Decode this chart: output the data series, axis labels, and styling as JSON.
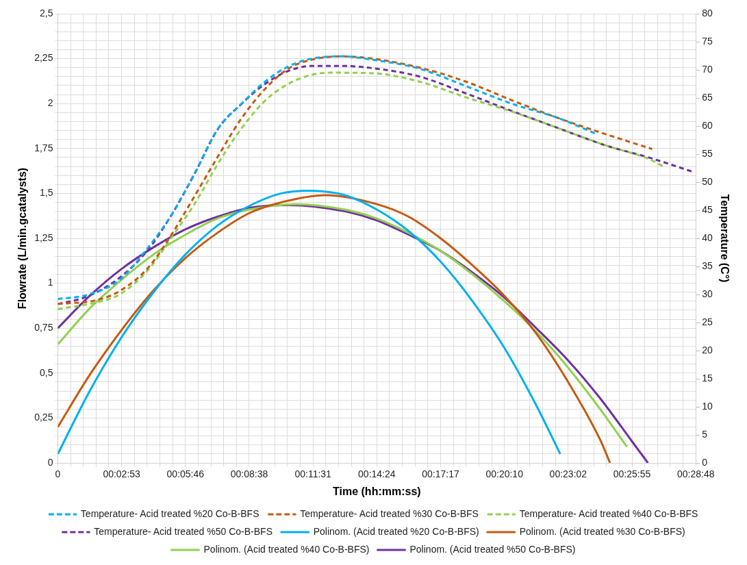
{
  "chart_data": {
    "type": "line",
    "xlabel": "Time (hh:mm:ss)",
    "ylabel": "Flowrate (L/min.gcatalysts)",
    "y2label": "Temperature (C°)",
    "xlim": [
      0,
      0.48
    ],
    "ylim": [
      0,
      2.5
    ],
    "y2lim": [
      0,
      80
    ],
    "xticks": [
      0,
      {
        "value": 0.0096,
        "label": null
      },
      {
        "value": 0.0192,
        "label": null
      },
      {
        "value": 0.0288,
        "label": null
      },
      {
        "value": 0.0384,
        "label": null
      },
      {
        "value": 0.048,
        "label": "00:02:53"
      },
      {
        "value": 0.0576,
        "label": null
      },
      {
        "value": 0.0672,
        "label": null
      },
      {
        "value": 0.0768,
        "label": null
      },
      {
        "value": 0.0864,
        "label": null
      },
      {
        "value": 0.096,
        "label": "00:05:46"
      },
      {
        "value": 0.1056,
        "label": null
      },
      {
        "value": 0.1152,
        "label": null
      },
      {
        "value": 0.1248,
        "label": null
      },
      {
        "value": 0.1344,
        "label": null
      },
      {
        "value": 0.144,
        "label": "00:08:38"
      },
      {
        "value": 0.1536,
        "label": null
      },
      {
        "value": 0.1632,
        "label": null
      },
      {
        "value": 0.1728,
        "label": null
      },
      {
        "value": 0.1824,
        "label": null
      },
      {
        "value": 0.192,
        "label": "00:11:31"
      },
      {
        "value": 0.2016,
        "label": null
      },
      {
        "value": 0.2112,
        "label": null
      },
      {
        "value": 0.2208,
        "label": null
      },
      {
        "value": 0.2304,
        "label": null
      },
      {
        "value": 0.24,
        "label": "00:14:24"
      },
      {
        "value": 0.2496,
        "label": null
      },
      {
        "value": 0.2592,
        "label": null
      },
      {
        "value": 0.2688,
        "label": null
      },
      {
        "value": 0.2784,
        "label": null
      },
      {
        "value": 0.288,
        "label": "00:17:17"
      },
      {
        "value": 0.2976,
        "label": null
      },
      {
        "value": 0.3072,
        "label": null
      },
      {
        "value": 0.3168,
        "label": null
      },
      {
        "value": 0.3264,
        "label": null
      },
      {
        "value": 0.336,
        "label": "00:20:10"
      },
      {
        "value": 0.3456,
        "label": null
      },
      {
        "value": 0.3552,
        "label": null
      },
      {
        "value": 0.3648,
        "label": null
      },
      {
        "value": 0.3744,
        "label": null
      },
      {
        "value": 0.384,
        "label": "00:23:02"
      },
      {
        "value": 0.3936,
        "label": null
      },
      {
        "value": 0.4032,
        "label": null
      },
      {
        "value": 0.4128,
        "label": null
      },
      {
        "value": 0.4224,
        "label": null
      },
      {
        "value": 0.432,
        "label": "00:25:55"
      },
      {
        "value": 0.4416,
        "label": null
      },
      {
        "value": 0.4512,
        "label": null
      },
      {
        "value": 0.4608,
        "label": null
      },
      {
        "value": 0.4704,
        "label": null
      },
      {
        "value": 0.48,
        "label": "00:28:48"
      }
    ],
    "yticks": [
      0,
      {
        "value": 0.05,
        "label": null
      },
      {
        "value": 0.1,
        "label": null
      },
      {
        "value": 0.15,
        "label": null
      },
      {
        "value": 0.2,
        "label": null
      },
      {
        "value": 0.25,
        "label": "0,25"
      },
      {
        "value": 0.3,
        "label": null
      },
      {
        "value": 0.35,
        "label": null
      },
      {
        "value": 0.4,
        "label": null
      },
      {
        "value": 0.45,
        "label": null
      },
      {
        "value": 0.5,
        "label": "0,5"
      },
      {
        "value": 0.55,
        "label": null
      },
      {
        "value": 0.6,
        "label": null
      },
      {
        "value": 0.65,
        "label": null
      },
      {
        "value": 0.7,
        "label": null
      },
      {
        "value": 0.75,
        "label": "0,75"
      },
      {
        "value": 0.8,
        "label": null
      },
      {
        "value": 0.85,
        "label": null
      },
      {
        "value": 0.9,
        "label": null
      },
      {
        "value": 0.95,
        "label": null
      },
      1,
      {
        "value": 1.05,
        "label": null
      },
      {
        "value": 1.1,
        "label": null
      },
      {
        "value": 1.15,
        "label": null
      },
      {
        "value": 1.2,
        "label": null
      },
      {
        "value": 1.25,
        "label": "1,25"
      },
      {
        "value": 1.3,
        "label": null
      },
      {
        "value": 1.35,
        "label": null
      },
      {
        "value": 1.4,
        "label": null
      },
      {
        "value": 1.45,
        "label": null
      },
      {
        "value": 1.5,
        "label": "1,5"
      },
      {
        "value": 1.55,
        "label": null
      },
      {
        "value": 1.6,
        "label": null
      },
      {
        "value": 1.65,
        "label": null
      },
      {
        "value": 1.7,
        "label": null
      },
      {
        "value": 1.75,
        "label": "1,75"
      },
      {
        "value": 1.8,
        "label": null
      },
      {
        "value": 1.85,
        "label": null
      },
      {
        "value": 1.9,
        "label": null
      },
      {
        "value": 1.95,
        "label": null
      },
      2,
      {
        "value": 2.05,
        "label": null
      },
      {
        "value": 2.1,
        "label": null
      },
      {
        "value": 2.15,
        "label": null
      },
      {
        "value": 2.2,
        "label": null
      },
      {
        "value": 2.25,
        "label": "2,25"
      },
      {
        "value": 2.3,
        "label": null
      },
      {
        "value": 2.35,
        "label": null
      },
      {
        "value": 2.4,
        "label": null
      },
      {
        "value": 2.45,
        "label": null
      },
      {
        "value": 2.5,
        "label": "2,5"
      }
    ],
    "y2ticks": [
      0,
      5,
      10,
      15,
      20,
      25,
      30,
      35,
      40,
      45,
      50,
      55,
      60,
      65,
      70,
      75,
      80
    ],
    "grid": true,
    "legend": "bottom",
    "marker": "none",
    "series": [
      {
        "name": "Temperature- Acid treated %20 Co-B-BFS",
        "color": "#00b0f0",
        "axis": "y2",
        "line_style": "dashed",
        "x": [
          0,
          0.0217,
          0.0465,
          0.0677,
          0.0851,
          0.1031,
          0.1205,
          0.138,
          0.1559,
          0.1734,
          0.1908,
          0.2141,
          0.2368,
          0.2722,
          0.3071,
          0.3425,
          0.3779,
          0.4049
        ],
        "values": [
          29.2,
          29.9,
          32.6,
          38.3,
          44,
          51.6,
          59.5,
          63.9,
          67.9,
          70.6,
          72,
          72.4,
          71.8,
          70.2,
          67.1,
          63.9,
          61.3,
          58.6
        ]
      },
      {
        "name": "Temperature- Acid treated %30 Co-B-BFS",
        "color": "#c55a11",
        "axis": "y2",
        "line_style": "dashed",
        "x": [
          0,
          0.0291,
          0.0465,
          0.0677,
          0.0851,
          0.1031,
          0.1205,
          0.138,
          0.1559,
          0.1734,
          0.1908,
          0.2141,
          0.2368,
          0.2722,
          0.3071,
          0.3425,
          0.3779,
          0.4128,
          0.4472
        ],
        "values": [
          28.3,
          29,
          30.6,
          34.7,
          40.5,
          47.6,
          54.6,
          61.3,
          66.6,
          70.2,
          71.8,
          72.4,
          72,
          70.4,
          67.9,
          64.5,
          61.3,
          58.5,
          55.9
        ]
      },
      {
        "name": "Temperature- Acid treated %40 Co-B-BFS",
        "color": "#92d050",
        "axis": "y2",
        "line_style": "dashed",
        "x": [
          0,
          0.0291,
          0.0465,
          0.0677,
          0.0851,
          0.1031,
          0.1205,
          0.138,
          0.1559,
          0.1734,
          0.1908,
          0.2051,
          0.2368,
          0.2722,
          0.3071,
          0.3425,
          0.3779,
          0.4128,
          0.444,
          0.4572
        ],
        "values": [
          27.4,
          28.6,
          30,
          34.3,
          40,
          46.2,
          53.3,
          59.5,
          64.5,
          67.5,
          69.1,
          69.5,
          69.4,
          67.9,
          65.1,
          62.5,
          59.5,
          56.5,
          54.2,
          52.6
        ]
      },
      {
        "name": "Temperature- Acid treated %50 Co-B-BFS",
        "color": "#7030a0",
        "axis": "y2",
        "line_style": "dashed",
        "x": [
          0,
          0.0217,
          0.0465,
          0.0677,
          0.0851,
          0.1031,
          0.1205,
          0.138,
          0.1559,
          0.1734,
          0.1908,
          0.2141,
          0.2368,
          0.2722,
          0.3071,
          0.3425,
          0.3779,
          0.4128,
          0.4445,
          0.4784
        ],
        "values": [
          28.3,
          29.6,
          33,
          37.9,
          44,
          51.6,
          59.5,
          63.9,
          67.5,
          69.8,
          70.7,
          70.7,
          70.3,
          68.8,
          65.8,
          62.6,
          59.5,
          56.5,
          54.4,
          51.8
        ]
      },
      {
        "name": "Polinom. (Acid treated %20 Co-B-BFS)",
        "color": "#00b0f0",
        "line_style": "solid",
        "x": [
          0,
          0.024,
          0.048,
          0.072,
          0.096,
          0.12,
          0.144,
          0.168,
          0.1893,
          0.216,
          0.24,
          0.264,
          0.288,
          0.312,
          0.336,
          0.36,
          0.378
        ],
        "values": [
          0.05,
          0.4,
          0.7,
          0.95,
          1.16,
          1.32,
          1.43,
          1.5,
          1.515,
          1.49,
          1.41,
          1.29,
          1.12,
          0.9,
          0.64,
          0.32,
          0.05
        ]
      },
      {
        "name": "Polinom. (Acid treated %30 Co-B-BFS)",
        "color": "#c55a11",
        "line_style": "solid",
        "x": [
          0,
          0.024,
          0.048,
          0.072,
          0.096,
          0.12,
          0.144,
          0.168,
          0.2014,
          0.24,
          0.264,
          0.288,
          0.312,
          0.336,
          0.36,
          0.384,
          0.408,
          0.4155
        ],
        "values": [
          0.2,
          0.49,
          0.74,
          0.96,
          1.14,
          1.28,
          1.39,
          1.45,
          1.49,
          1.44,
          1.37,
          1.25,
          1.1,
          0.93,
          0.72,
          0.45,
          0.13,
          0
        ]
      },
      {
        "name": "Polinom. (Acid treated %40 Co-B-BFS)",
        "color": "#92d050",
        "line_style": "solid",
        "x": [
          0,
          0.024,
          0.048,
          0.072,
          0.096,
          0.12,
          0.144,
          0.1787,
          0.216,
          0.24,
          0.264,
          0.288,
          0.312,
          0.336,
          0.36,
          0.384,
          0.408,
          0.4282
        ],
        "values": [
          0.66,
          0.86,
          1.02,
          1.16,
          1.27,
          1.36,
          1.41,
          1.44,
          1.41,
          1.36,
          1.28,
          1.18,
          1.05,
          0.9,
          0.73,
          0.53,
          0.3,
          0.09
        ]
      },
      {
        "name": "Polinom. (Acid treated %50 Co-B-BFS)",
        "color": "#7030a0",
        "line_style": "solid",
        "x": [
          0,
          0.024,
          0.048,
          0.072,
          0.096,
          0.12,
          0.144,
          0.1734,
          0.216,
          0.24,
          0.264,
          0.288,
          0.312,
          0.336,
          0.36,
          0.384,
          0.408,
          0.432,
          0.444
        ],
        "values": [
          0.75,
          0.93,
          1.08,
          1.2,
          1.3,
          1.37,
          1.42,
          1.435,
          1.4,
          1.35,
          1.27,
          1.18,
          1.06,
          0.92,
          0.75,
          0.57,
          0.36,
          0.12,
          0
        ]
      }
    ]
  }
}
